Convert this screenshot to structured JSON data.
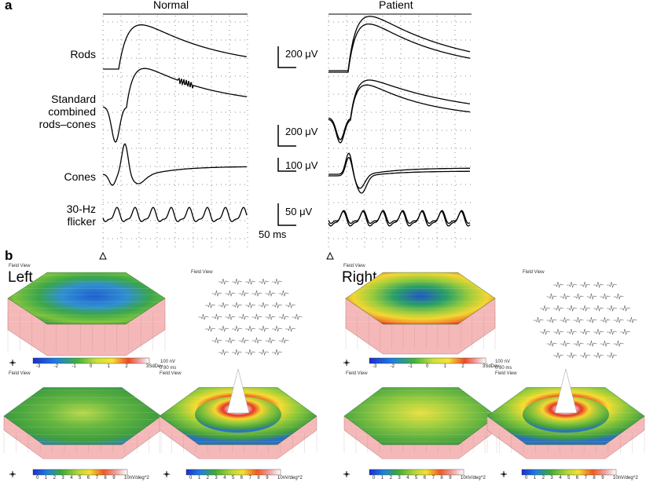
{
  "panel_a": {
    "letter": "a",
    "col_normal": "Normal",
    "col_patient": "Patient",
    "rows": {
      "rods": "Rods",
      "standard": [
        "Standard",
        "combined",
        "rods–cones"
      ],
      "cones": "Cones",
      "flicker": [
        "30-Hz",
        "flicker"
      ]
    },
    "scales": {
      "rods": "200 μV",
      "standard": "200 μV",
      "cones": "100 μV",
      "flicker": "50 μV",
      "time": "50 ms"
    }
  },
  "panel_b": {
    "letter": "b",
    "left": {
      "eye": "Left",
      "field_view": "Field View",
      "scale_note_amp": "100 nV",
      "scale_note_time": "0  80 ms",
      "colorbar_top_ticks": [
        "-3",
        "-2",
        "-1",
        "0",
        "1",
        "2"
      ],
      "colorbar_top_unit": "3SdDev",
      "colorbar_bottom_ticks": [
        "0",
        "1",
        "2",
        "3",
        "4",
        "5",
        "6",
        "7",
        "8",
        "9"
      ],
      "colorbar_bottom_unit": "10nV/deg^2",
      "colorbar_bottom_unit2": "10nV/deg^2"
    },
    "right": {
      "eye": "Right",
      "field_view": "Field View",
      "scale_note_amp": "100 nV",
      "scale_note_time": "0  80 ms",
      "colorbar_top_ticks": [
        "-3",
        "-2",
        "-1",
        "0",
        "1",
        "2"
      ],
      "colorbar_top_unit": "3SdDev",
      "colorbar_bottom_ticks": [
        "0",
        "1",
        "2",
        "3",
        "4",
        "5",
        "6",
        "7",
        "8",
        "9"
      ],
      "colorbar_bottom_unit": "10nV/deg^2",
      "colorbar_bottom_unit2": "10nV/deg^2"
    }
  },
  "colors": {
    "trace": "#000000",
    "grid": "#555555",
    "base_pink": "#f4b8b8",
    "scale_blue": "#1f4fc8",
    "scale_green": "#4fb33c",
    "scale_yellow": "#f2e230",
    "scale_red": "#e22a20"
  }
}
